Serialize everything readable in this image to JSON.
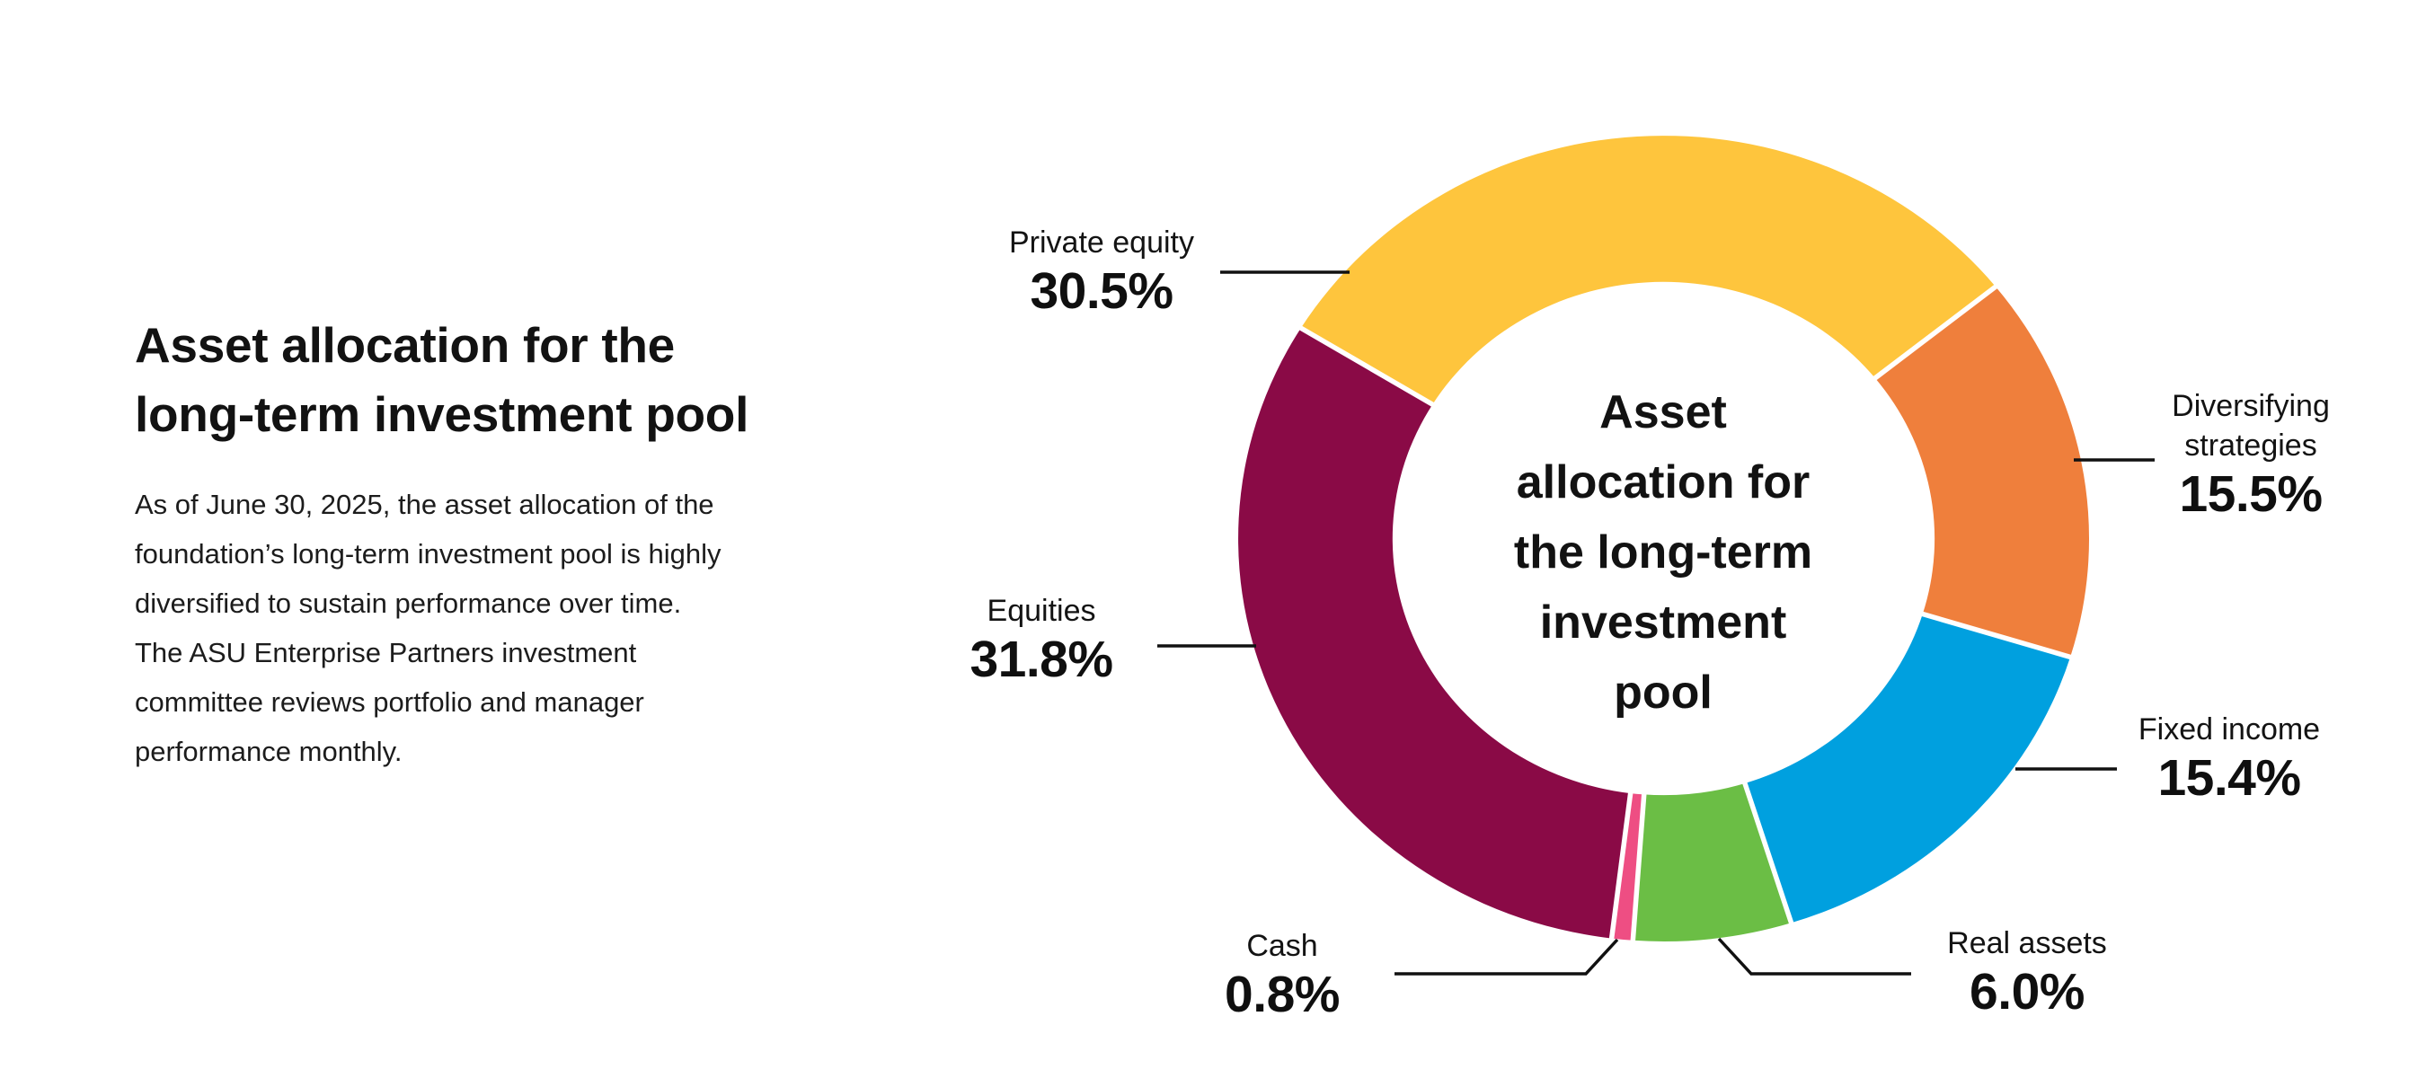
{
  "page": {
    "background": "#ffffff"
  },
  "intro": {
    "heading_lines": [
      "Asset allocation for the",
      "long-term investment pool"
    ],
    "body_lines": [
      "As of June 30, 2025, the asset allocation of the",
      "foundation’s long-term investment pool is highly",
      "diversified to sustain performance over time.",
      "The ASU Enterprise Partners investment",
      "committee reviews portfolio and manager",
      "performance monthly."
    ]
  },
  "chart_data": {
    "type": "pie",
    "subtype": "donut",
    "title": "Asset allocation for the long-term investment pool",
    "center_label_lines": [
      "Asset",
      "allocation for",
      "the long-term",
      "investment",
      "pool"
    ],
    "start_angle_deg": -58.5,
    "clockwise": true,
    "inner_radius_ratio": 0.637,
    "gap_color": "#ffffff",
    "leader_line_color": "#111111",
    "segments": [
      {
        "id": "private-equity",
        "name": "Private equity",
        "value": 30.5,
        "label": "30.5%",
        "color": "#FEC53D"
      },
      {
        "id": "diversifying",
        "name": "Diversifying strategies",
        "name_lines": [
          "Diversifying",
          "strategies"
        ],
        "value": 15.5,
        "label": "15.5%",
        "color": "#EF7F3C"
      },
      {
        "id": "fixed-income",
        "name": "Fixed income",
        "value": 15.4,
        "label": "15.4%",
        "color": "#00A0DF"
      },
      {
        "id": "real-assets",
        "name": "Real assets",
        "value": 6.0,
        "label": "6.0%",
        "color": "#6BBE45"
      },
      {
        "id": "cash",
        "name": "Cash",
        "value": 0.8,
        "label": "0.8%",
        "color": "#EE4E83"
      },
      {
        "id": "equities",
        "name": "Equities",
        "value": 31.8,
        "label": "31.8%",
        "color": "#8A0A46"
      }
    ]
  }
}
